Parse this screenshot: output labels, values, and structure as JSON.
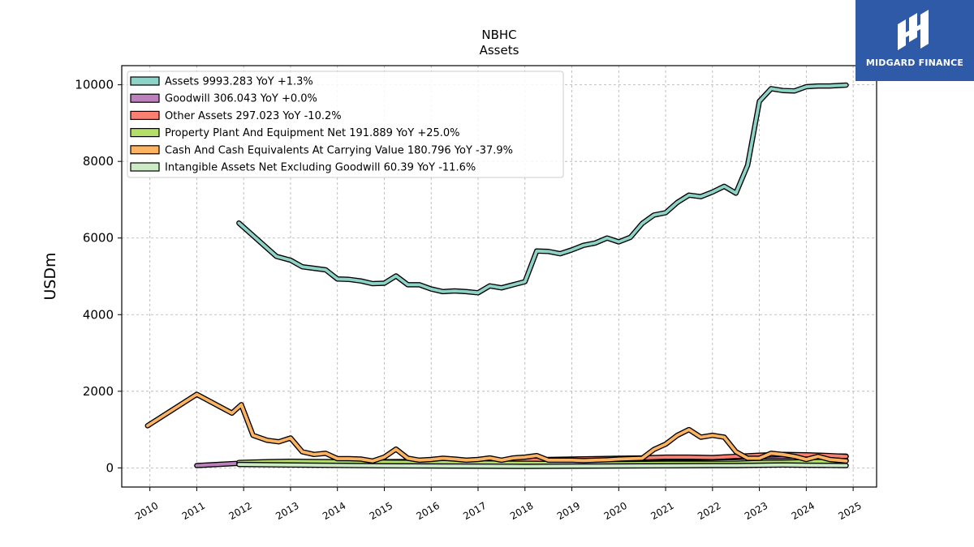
{
  "brand": {
    "name": "MIDGARD FINANCE",
    "color": "#2f5aa8"
  },
  "chart_data": {
    "type": "line",
    "title": "NBHC",
    "subtitle": "Assets",
    "xlabel": "",
    "ylabel": "USDm",
    "xlim": [
      2009.4,
      2025.5
    ],
    "ylim": [
      -500,
      10500
    ],
    "grid": true,
    "legend_position": "top-left",
    "x_ticks": [
      2010,
      2011,
      2012,
      2013,
      2014,
      2015,
      2016,
      2017,
      2018,
      2019,
      2020,
      2021,
      2022,
      2023,
      2024,
      2025
    ],
    "y_ticks": [
      0,
      2000,
      4000,
      6000,
      8000,
      10000
    ],
    "series": [
      {
        "name": "Assets",
        "legend": "Assets  9993.283 YoY +1.3%",
        "color": "#8dd3c7",
        "x": [
          2011.9,
          2012.7,
          2013.0,
          2013.25,
          2013.75,
          2014.0,
          2014.25,
          2014.5,
          2014.75,
          2015.0,
          2015.25,
          2015.5,
          2015.75,
          2016.0,
          2016.25,
          2016.5,
          2016.75,
          2017.0,
          2017.25,
          2017.5,
          2017.75,
          2018.0,
          2018.25,
          2018.5,
          2018.75,
          2019.0,
          2019.25,
          2019.5,
          2019.75,
          2020.0,
          2020.25,
          2020.5,
          2020.75,
          2021.0,
          2021.25,
          2021.5,
          2021.75,
          2022.0,
          2022.25,
          2022.5,
          2022.75,
          2023.0,
          2023.25,
          2023.5,
          2023.75,
          2024.0,
          2024.25,
          2024.5,
          2024.85
        ],
        "y": [
          6390,
          5520,
          5420,
          5250,
          5170,
          4930,
          4920,
          4880,
          4810,
          4820,
          5010,
          4780,
          4780,
          4670,
          4600,
          4620,
          4600,
          4570,
          4750,
          4700,
          4780,
          4860,
          5660,
          5650,
          5590,
          5690,
          5810,
          5870,
          6000,
          5900,
          6020,
          6380,
          6600,
          6660,
          6930,
          7120,
          7080,
          7200,
          7350,
          7170,
          7900,
          9570,
          9900,
          9850,
          9840,
          9950,
          9970,
          9970,
          9993
        ]
      },
      {
        "name": "Goodwill",
        "legend": "Goodwill  306.043 YoY +0.0%",
        "color": "#bc80bd",
        "x": [
          2010.0,
          2011.0,
          2011.9,
          2012.5,
          2013.0,
          2014.0,
          2015.0,
          2016.0,
          2017.0,
          2018.0,
          2018.5,
          2019.0,
          2020.0,
          2021.0,
          2022.0,
          2022.5,
          2023.0,
          2023.5,
          2024.0,
          2024.85
        ],
        "y": [
          null,
          60,
          120,
          140,
          160,
          160,
          160,
          170,
          170,
          180,
          200,
          210,
          220,
          250,
          260,
          270,
          290,
          300,
          305,
          306
        ]
      },
      {
        "name": "Other Assets",
        "legend": "Other Assets  297.023 YoY -10.2%",
        "color": "#fb8072",
        "x": [
          2011.9,
          2012.5,
          2013.0,
          2014.0,
          2015.0,
          2016.0,
          2017.0,
          2018.0,
          2018.5,
          2019.0,
          2019.5,
          2020.0,
          2020.5,
          2021.0,
          2021.5,
          2022.0,
          2022.5,
          2023.0,
          2023.5,
          2024.0,
          2024.5,
          2024.85
        ],
        "y": [
          130,
          140,
          150,
          150,
          150,
          160,
          170,
          200,
          220,
          230,
          240,
          250,
          260,
          280,
          280,
          270,
          300,
          330,
          350,
          340,
          320,
          297
        ]
      },
      {
        "name": "Property Plant And Equipment Net",
        "legend": "Property Plant And Equipment Net  191.889 YoY +25.0%",
        "color": "#b3de69",
        "x": [
          2011.9,
          2012.5,
          2013.0,
          2014.0,
          2015.0,
          2016.0,
          2017.0,
          2018.0,
          2019.0,
          2020.0,
          2021.0,
          2022.0,
          2022.5,
          2023.0,
          2023.5,
          2024.0,
          2024.5,
          2024.85
        ],
        "y": [
          140,
          160,
          170,
          160,
          150,
          140,
          130,
          120,
          110,
          110,
          120,
          120,
          120,
          140,
          150,
          160,
          170,
          192
        ]
      },
      {
        "name": "Cash And Cash Equivalents At Carrying Value",
        "legend": "Cash And Cash Equivalents At Carrying Value  180.796 YoY -37.9%",
        "color": "#fdb462",
        "x": [
          2009.95,
          2011.0,
          2011.75,
          2011.95,
          2012.2,
          2012.5,
          2012.75,
          2013.0,
          2013.25,
          2013.5,
          2013.75,
          2014.0,
          2014.25,
          2014.5,
          2014.75,
          2015.0,
          2015.25,
          2015.5,
          2015.75,
          2016.0,
          2016.25,
          2016.5,
          2016.75,
          2017.0,
          2017.25,
          2017.5,
          2017.75,
          2018.0,
          2018.25,
          2018.5,
          2018.75,
          2019.0,
          2019.25,
          2019.5,
          2019.75,
          2020.0,
          2020.25,
          2020.5,
          2020.75,
          2021.0,
          2021.25,
          2021.5,
          2021.75,
          2022.0,
          2022.25,
          2022.5,
          2022.75,
          2023.0,
          2023.25,
          2023.5,
          2023.75,
          2024.0,
          2024.25,
          2024.5,
          2024.85
        ],
        "y": [
          1100,
          1920,
          1430,
          1650,
          850,
          720,
          680,
          780,
          420,
          350,
          380,
          240,
          240,
          230,
          180,
          280,
          490,
          250,
          200,
          220,
          250,
          230,
          200,
          220,
          260,
          200,
          260,
          280,
          320,
          200,
          200,
          200,
          190,
          200,
          210,
          230,
          240,
          250,
          480,
          620,
          850,
          1000,
          800,
          850,
          800,
          420,
          250,
          250,
          380,
          350,
          300,
          220,
          300,
          220,
          181
        ]
      },
      {
        "name": "Intangible Assets Net Excluding Goodwill",
        "legend": "Intangible Assets Net Excluding Goodwill  60.39 YoY -11.6%",
        "color": "#ccebc5",
        "x": [
          2011.9,
          2013.0,
          2014.0,
          2015.0,
          2016.0,
          2017.0,
          2018.0,
          2019.0,
          2020.0,
          2021.0,
          2022.0,
          2022.5,
          2023.0,
          2023.5,
          2024.0,
          2024.5,
          2024.85
        ],
        "y": [
          90,
          75,
          65,
          55,
          50,
          45,
          40,
          45,
          50,
          55,
          60,
          60,
          70,
          75,
          70,
          65,
          60
        ]
      }
    ]
  }
}
